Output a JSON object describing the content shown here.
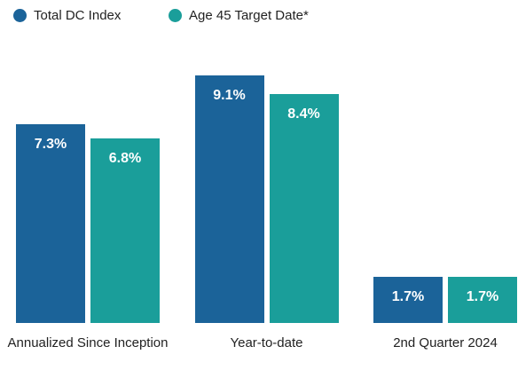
{
  "chart_data": {
    "type": "bar",
    "categories": [
      "Annualized Since Inception",
      "Year-to-date",
      "2nd Quarter 2024"
    ],
    "series": [
      {
        "name": "Total DC Index",
        "color": "#1b6399",
        "values": [
          7.3,
          9.1,
          1.7
        ],
        "value_labels": [
          "7.3%",
          "9.1%",
          "1.7%"
        ]
      },
      {
        "name": "Age 45 Target Date*",
        "color": "#1a9e9a",
        "values": [
          6.8,
          8.4,
          1.7
        ],
        "value_labels": [
          "6.8%",
          "8.4%",
          "1.7%"
        ]
      }
    ],
    "legend": "top-left"
  }
}
